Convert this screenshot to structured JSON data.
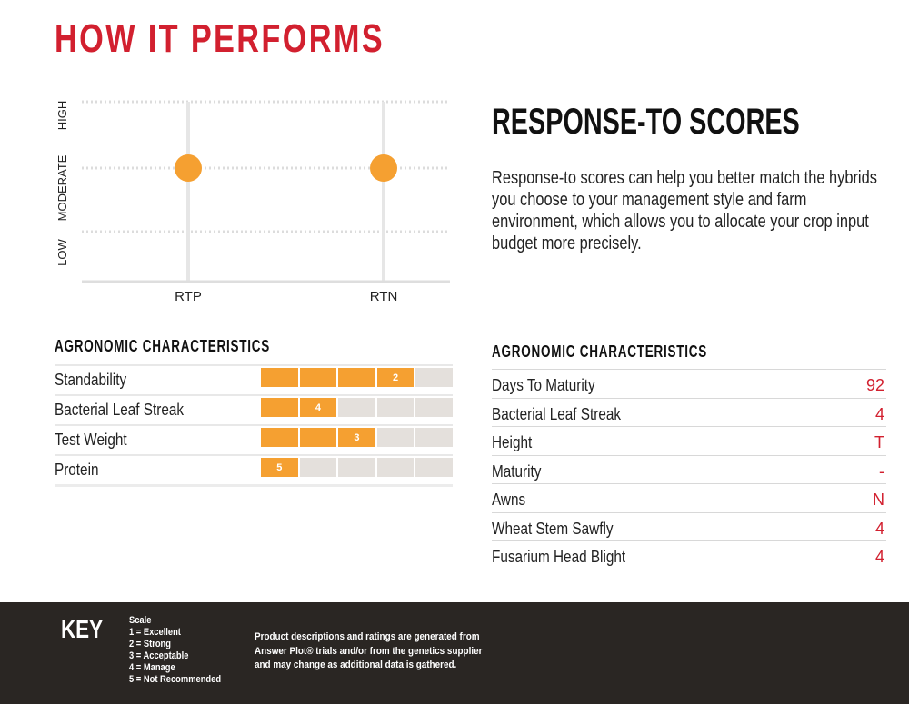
{
  "page": {
    "title": "HOW IT PERFORMS"
  },
  "response_scores": {
    "title": "RESPONSE-TO SCORES",
    "description": "Response-to scores can help you better match the hybrids you choose to your management style and farm environment, which allows you to allocate your crop input budget more precisely."
  },
  "chart_data": {
    "type": "scatter",
    "categories": [
      "RTP",
      "RTN"
    ],
    "y_levels": [
      "LOW",
      "MODERATE",
      "HIGH"
    ],
    "values": [
      "MODERATE",
      "MODERATE"
    ],
    "grid": true,
    "marker_color": "#f5a031"
  },
  "left_table": {
    "heading": "AGRONOMIC CHARACTERISTICS",
    "scale_max": 5,
    "rows": [
      {
        "label": "Standability",
        "score": 2,
        "score_label": "2"
      },
      {
        "label": "Bacterial Leaf Streak",
        "score": 4,
        "score_label": "4"
      },
      {
        "label": "Test Weight",
        "score": 3,
        "score_label": "3"
      },
      {
        "label": "Protein",
        "score": 5,
        "score_label": "5"
      }
    ]
  },
  "right_table": {
    "heading": "AGRONOMIC CHARACTERISTICS",
    "rows": [
      {
        "label": "Days To Maturity",
        "value": "92"
      },
      {
        "label": "Bacterial Leaf Streak",
        "value": "4"
      },
      {
        "label": "Height",
        "value": "T"
      },
      {
        "label": "Maturity",
        "value": "-"
      },
      {
        "label": "Awns",
        "value": "N"
      },
      {
        "label": "Wheat Stem Sawfly",
        "value": "4"
      },
      {
        "label": "Fusarium Head Blight",
        "value": "4"
      }
    ]
  },
  "footer": {
    "key_label": "KEY",
    "scale_title": "Scale",
    "scale_items": [
      "1 = Excellent",
      "2 = Strong",
      "3 = Acceptable",
      "4 = Manage",
      "5 = Not Recommended"
    ],
    "disclaimer": "Product descriptions and ratings are generated from Answer Plot® trials and/or from the genetics supplier and may change as additional data is gathered."
  },
  "colors": {
    "accent_red": "#d2202f",
    "bar_orange": "#f5a031",
    "bar_empty": "#e4e0dc",
    "footer_bg": "#2a2623"
  }
}
